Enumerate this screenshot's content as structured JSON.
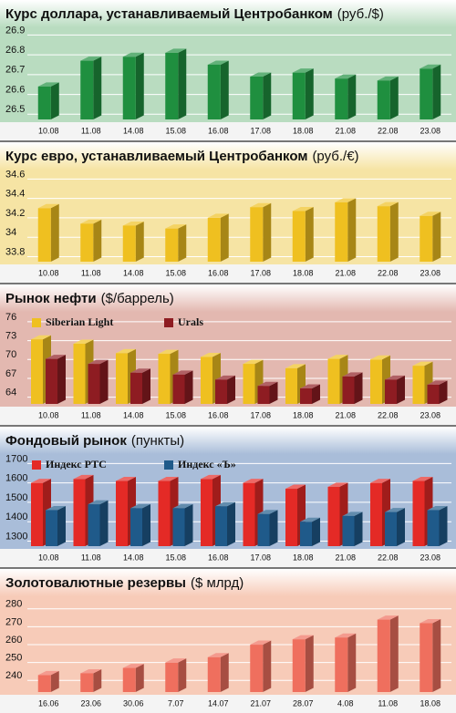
{
  "chart_data": [
    {
      "type": "bar",
      "title": "Курс доллара, устанавливаемый Центробанком",
      "unit": "(руб./$)",
      "background": "#b9dcc0",
      "categories": [
        "10.08",
        "11.08",
        "14.08",
        "15.08",
        "16.08",
        "17.08",
        "18.08",
        "21.08",
        "22.08",
        "23.08"
      ],
      "values": [
        26.64,
        26.77,
        26.79,
        26.81,
        26.75,
        26.69,
        26.71,
        26.68,
        26.67,
        26.73
      ],
      "color": "#1f8f3f",
      "ylim": [
        26.46,
        26.92
      ],
      "yticks": [
        26.5,
        26.6,
        26.7,
        26.8,
        26.9
      ],
      "grid": true
    },
    {
      "type": "bar",
      "title": "Курс евро, устанавливаемый Центробанком",
      "unit": "(руб./€)",
      "background": "#f6e4a4",
      "categories": [
        "10.08",
        "11.08",
        "14.08",
        "15.08",
        "16.08",
        "17.08",
        "18.08",
        "21.08",
        "22.08",
        "23.08"
      ],
      "values": [
        34.3,
        34.14,
        34.12,
        34.09,
        34.2,
        34.31,
        34.27,
        34.36,
        34.32,
        34.22
      ],
      "color": "#efc020",
      "ylim": [
        33.72,
        34.66
      ],
      "yticks": [
        33.8,
        34.0,
        34.2,
        34.4,
        34.6
      ],
      "grid": true
    },
    {
      "type": "bar",
      "title": "Рынок нефти",
      "unit": "($/баррель)",
      "background": "#e3b8b0",
      "categories": [
        "10.08",
        "11.08",
        "14.08",
        "15.08",
        "16.08",
        "17.08",
        "18.08",
        "21.08",
        "22.08",
        "23.08"
      ],
      "series": [
        {
          "name": "Siberian Light",
          "color": "#efc020",
          "values": [
            73.2,
            72.5,
            71,
            70.9,
            70.4,
            69.3,
            68.6,
            70.1,
            70,
            69
          ]
        },
        {
          "name": "Urals",
          "color": "#8e1c22",
          "values": [
            70.1,
            69.3,
            67.9,
            67.6,
            66.8,
            65.8,
            65.4,
            67.3,
            66.8,
            66
          ]
        }
      ],
      "ylim": [
        62.5,
        77
      ],
      "yticks": [
        64,
        67,
        70,
        73,
        76
      ],
      "grid": true,
      "legend": "top-left"
    },
    {
      "type": "bar",
      "title": "Фондовый рынок",
      "unit": "(пункты)",
      "background": "#a9bdd9",
      "categories": [
        "10.08",
        "11.08",
        "14.08",
        "15.08",
        "16.08",
        "17.08",
        "18.08",
        "21.08",
        "22.08",
        "23.08"
      ],
      "series": [
        {
          "name": "Индекс РТС",
          "color": "#e42a26",
          "values": [
            1600,
            1620,
            1610,
            1610,
            1620,
            1600,
            1570,
            1580,
            1600,
            1610
          ]
        },
        {
          "name": "Индекс «Ъ»",
          "color": "#1f5a8a",
          "values": [
            1460,
            1490,
            1470,
            1470,
            1480,
            1440,
            1400,
            1430,
            1450,
            1460
          ]
        }
      ],
      "ylim": [
        1260,
        1730
      ],
      "yticks": [
        1300,
        1400,
        1500,
        1600,
        1700
      ],
      "grid": true,
      "legend": "top-left"
    },
    {
      "type": "bar",
      "title": "Золотовалютные резервы",
      "unit": "($ млрд)",
      "background": "#f7cbb8",
      "categories": [
        "16.06",
        "23.06",
        "30.06",
        "7.07",
        "14.07",
        "21.07",
        "28.07",
        "4.08",
        "11.08",
        "18.08"
      ],
      "values": [
        243,
        244,
        247,
        250,
        253,
        260,
        263,
        264,
        274,
        272
      ],
      "color": "#ef6f5e",
      "ylim": [
        232,
        285
      ],
      "yticks": [
        240,
        250,
        260,
        270,
        280
      ],
      "grid": true
    }
  ]
}
